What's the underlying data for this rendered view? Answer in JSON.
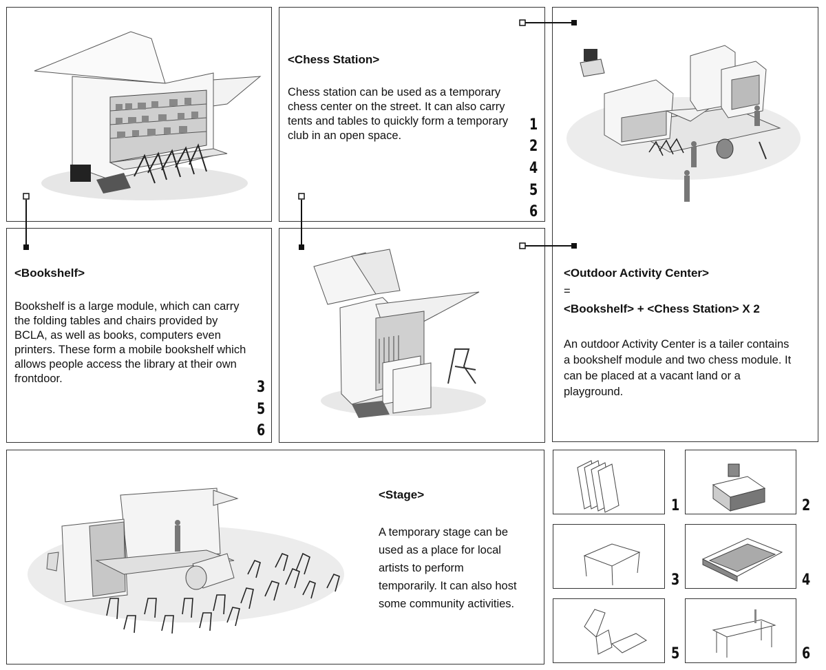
{
  "chess": {
    "title": "<Chess Station>",
    "description": "Chess station can be used as a temporary chess center on the street. It can also carry tents and tables to quickly form a temporary club in an open space.",
    "numbers": [
      "1",
      "2",
      "4",
      "5",
      "6"
    ]
  },
  "bookshelf": {
    "title": "<Bookshelf>",
    "description": "Bookshelf is a large module, which can carry the folding tables and chairs provided by BCLA, as well as books, computers even printers. These form a mobile bookshelf which allows people access the library at their own frontdoor.",
    "numbers": [
      "3",
      "5",
      "6"
    ]
  },
  "outdoor": {
    "title": "<Outdoor Activity Center>",
    "equals": "=",
    "formula": "<Bookshelf> + <Chess Station> X 2",
    "description": "An outdoor Activity Center is a tailer contains a bookshelf module and two chess module. It can be placed at a vacant land or a playground."
  },
  "stage": {
    "title": "<Stage>",
    "description": "A temporary stage can be used as a place for local artists to perform temporarily. It can also host some community activities."
  },
  "components": [
    "1",
    "2",
    "3",
    "4",
    "5",
    "6"
  ]
}
